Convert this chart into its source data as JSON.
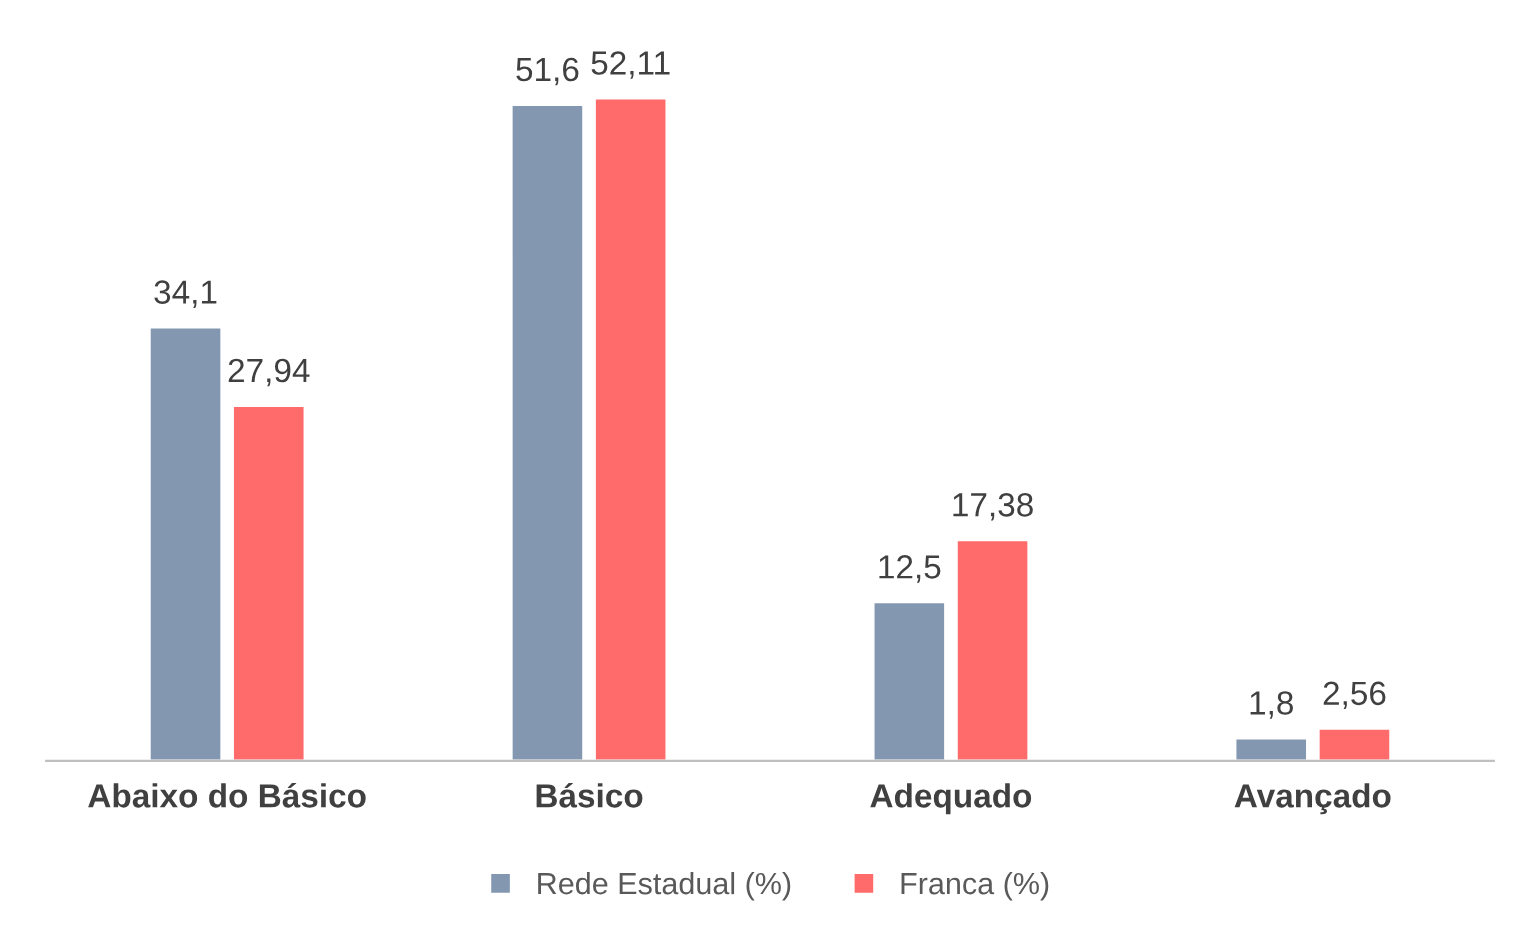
{
  "chart_data": {
    "type": "bar",
    "categories": [
      "Abaixo do Básico",
      "Básico",
      "Adequado",
      "Avançado"
    ],
    "series": [
      {
        "name": "Rede Estadual (%)",
        "color": "#8497b0",
        "values": [
          34.1,
          51.6,
          12.5,
          1.8
        ],
        "value_labels": [
          "34,1",
          "51,6",
          "12,5",
          "1,8"
        ]
      },
      {
        "name": "Franca (%)",
        "color": "#ff6b6b",
        "values": [
          27.94,
          52.11,
          17.38,
          2.56
        ],
        "value_labels": [
          "27,94",
          "52,11",
          "17,38",
          "2,56"
        ]
      }
    ],
    "legend": "bottom",
    "grid": false
  }
}
